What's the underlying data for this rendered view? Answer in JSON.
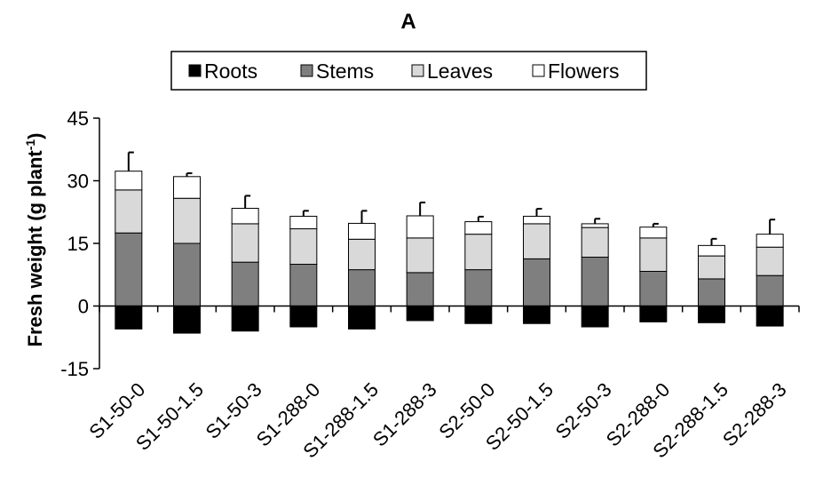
{
  "chart_data": {
    "type": "bar",
    "stacked": true,
    "title": "A",
    "ylabel_main": "Fresh weight (g plant",
    "ylabel_sup": "-1",
    "ylabel_close": ")",
    "xlabel": "",
    "ylim": [
      -15,
      45
    ],
    "yticks": [
      "45",
      "30",
      "15",
      "0",
      "-15"
    ],
    "ytick_values": [
      45,
      30,
      15,
      0,
      -15
    ],
    "grid": false,
    "legend_position": "top",
    "categories": [
      "S1-50-0",
      "S1-50-1.5",
      "S1-50-3",
      "S1-288-0",
      "S1-288-1.5",
      "S1-288-3",
      "S2-50-0",
      "S2-50-1.5",
      "S2-50-3",
      "S2-288-0",
      "S2-288-1.5",
      "S2-288-3"
    ],
    "series": [
      {
        "name": "Roots",
        "color": "#000000",
        "values": [
          -5.5,
          -6.5,
          -6.0,
          -5.0,
          -5.5,
          -3.5,
          -4.2,
          -4.2,
          -5.0,
          -3.8,
          -4.0,
          -4.8
        ]
      },
      {
        "name": "Stems",
        "color": "#7f7f7f",
        "values": [
          17.5,
          15.0,
          10.5,
          10.0,
          8.7,
          8.0,
          8.7,
          11.3,
          11.7,
          8.3,
          6.5,
          7.3
        ]
      },
      {
        "name": "Leaves",
        "color": "#d9d9d9",
        "values": [
          10.3,
          10.8,
          9.2,
          8.5,
          7.3,
          8.3,
          8.5,
          8.4,
          7.1,
          8.0,
          5.5,
          6.8
        ]
      },
      {
        "name": "Flowers",
        "color": "#ffffff",
        "values": [
          4.5,
          5.2,
          3.7,
          3.0,
          3.8,
          5.3,
          3.0,
          1.8,
          0.9,
          2.6,
          2.5,
          3.1
        ]
      }
    ],
    "error_bars_positive": [
      4.5,
      0.8,
      3.0,
      1.3,
      3.0,
      3.2,
      1.2,
      1.8,
      1.2,
      0.8,
      1.6,
      3.5
    ]
  }
}
